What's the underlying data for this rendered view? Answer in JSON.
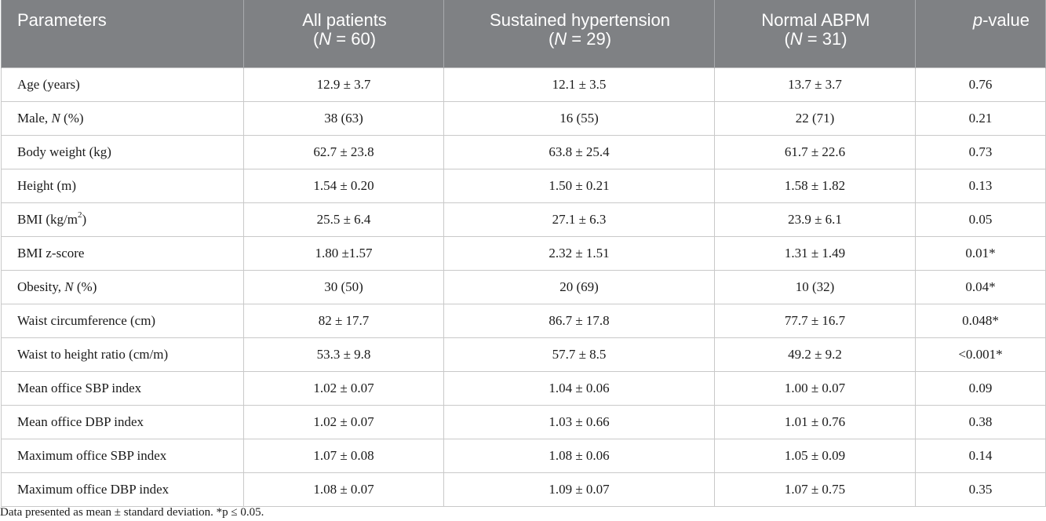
{
  "table": {
    "headers": [
      {
        "label": "Parameters"
      },
      {
        "label": "All patients",
        "n_prefix": "(",
        "n_letter": "N",
        "n_suffix": " = 60)"
      },
      {
        "label": "Sustained hypertension",
        "n_prefix": "(",
        "n_letter": "N",
        "n_suffix": " = 29)"
      },
      {
        "label": "Normal ABPM",
        "n_prefix": "(",
        "n_letter": "N",
        "n_suffix": " = 31)"
      },
      {
        "label_italic": "p",
        "label_rest": "-value"
      }
    ],
    "rows": [
      {
        "param": "Age (years)",
        "all": "12.9 ± 3.7",
        "sustained": "12.1 ± 3.5",
        "normal": "13.7 ± 3.7",
        "p": "0.76"
      },
      {
        "param_pre": "Male, ",
        "param_italic": "N",
        "param_post": " (%)",
        "all": "38 (63)",
        "sustained": "16 (55)",
        "normal": "22 (71)",
        "p": "0.21"
      },
      {
        "param": "Body weight (kg)",
        "all": "62.7 ± 23.8",
        "sustained": "63.8 ± 25.4",
        "normal": "61.7 ± 22.6",
        "p": "0.73"
      },
      {
        "param": "Height (m)",
        "all": "1.54 ± 0.20",
        "sustained": "1.50 ± 0.21",
        "normal": "1.58 ± 1.82",
        "p": "0.13"
      },
      {
        "param_pre": "BMI (kg/m",
        "param_sup": "2",
        "param_post": ")",
        "all": "25.5 ± 6.4",
        "sustained": "27.1 ± 6.3",
        "normal": "23.9 ± 6.1",
        "p": "0.05"
      },
      {
        "param": "BMI z-score",
        "all": "1.80 ±1.57",
        "sustained": "2.32 ± 1.51",
        "normal": "1.31 ± 1.49",
        "p": "0.01*"
      },
      {
        "param_pre": "Obesity, ",
        "param_italic": "N",
        "param_post": " (%)",
        "all": "30 (50)",
        "sustained": "20 (69)",
        "normal": "10 (32)",
        "p": "0.04*"
      },
      {
        "param": "Waist circumference (cm)",
        "all": "82 ± 17.7",
        "sustained": "86.7 ± 17.8",
        "normal": "77.7 ± 16.7",
        "p": "0.048*"
      },
      {
        "param": "Waist to height ratio (cm/m)",
        "all": "53.3 ± 9.8",
        "sustained": "57.7 ± 8.5",
        "normal": "49.2 ± 9.2",
        "p": "<0.001*"
      },
      {
        "param": "Mean office SBP index",
        "all": "1.02 ± 0.07",
        "sustained": "1.04 ± 0.06",
        "normal": "1.00 ± 0.07",
        "p": "0.09"
      },
      {
        "param": "Mean office DBP index",
        "all": "1.02 ± 0.07",
        "sustained": "1.03 ± 0.66",
        "normal": "1.01 ± 0.76",
        "p": "0.38"
      },
      {
        "param": "Maximum office SBP index",
        "all": "1.07 ± 0.08",
        "sustained": "1.08 ± 0.06",
        "normal": "1.05 ± 0.09",
        "p": "0.14"
      },
      {
        "param": "Maximum office DBP index",
        "all": "1.08 ± 0.07",
        "sustained": "1.09 ± 0.07",
        "normal": "1.07 ± 0.75",
        "p": "0.35"
      }
    ]
  },
  "footnote": "Data presented as mean ± standard deviation. *p ≤ 0.05."
}
